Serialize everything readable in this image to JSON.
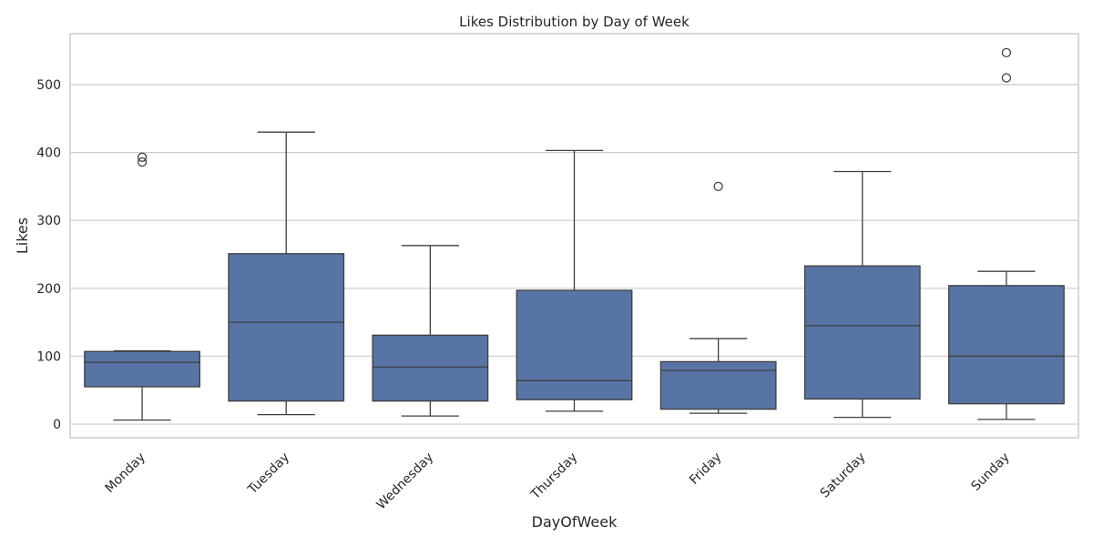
{
  "chart_data": {
    "type": "box",
    "title": "Likes Distribution by Day of Week",
    "xlabel": "DayOfWeek",
    "ylabel": "Likes",
    "ylim": [
      -20,
      575
    ],
    "yticks": [
      0,
      100,
      200,
      300,
      400,
      500
    ],
    "grid": "horizontal",
    "box_color": "#5874a5",
    "line_color": "#3f3f3f",
    "grid_color": "#cccccc",
    "categories": [
      "Monday",
      "Tuesday",
      "Wednesday",
      "Thursday",
      "Friday",
      "Saturday",
      "Sunday"
    ],
    "boxes": [
      {
        "category": "Monday",
        "whisker_low": 6,
        "q1": 55,
        "median": 91,
        "q3": 107,
        "whisker_high": 108,
        "outliers": [
          386,
          393
        ]
      },
      {
        "category": "Tuesday",
        "whisker_low": 14,
        "q1": 34,
        "median": 150,
        "q3": 251,
        "whisker_high": 430,
        "outliers": []
      },
      {
        "category": "Wednesday",
        "whisker_low": 12,
        "q1": 34,
        "median": 84,
        "q3": 131,
        "whisker_high": 263,
        "outliers": []
      },
      {
        "category": "Thursday",
        "whisker_low": 19,
        "q1": 36,
        "median": 64,
        "q3": 197,
        "whisker_high": 403,
        "outliers": []
      },
      {
        "category": "Friday",
        "whisker_low": 16,
        "q1": 22,
        "median": 79,
        "q3": 92,
        "whisker_high": 126,
        "outliers": [
          350
        ]
      },
      {
        "category": "Saturday",
        "whisker_low": 10,
        "q1": 37,
        "median": 145,
        "q3": 233,
        "whisker_high": 372,
        "outliers": []
      },
      {
        "category": "Sunday",
        "whisker_low": 7,
        "q1": 30,
        "median": 100,
        "q3": 204,
        "whisker_high": 225,
        "outliers": [
          510,
          547
        ]
      }
    ]
  }
}
